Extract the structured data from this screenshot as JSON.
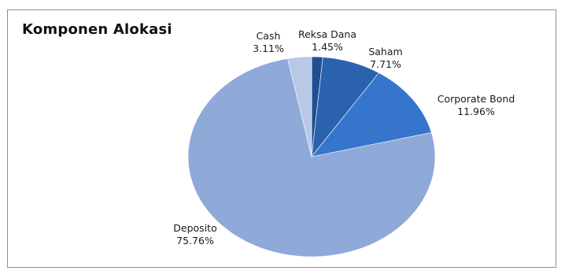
{
  "chart_data": {
    "type": "pie",
    "title": "Komponen Alokasi",
    "slices": [
      {
        "label": "Reksa Dana",
        "value": 1.45,
        "display": "1.45%",
        "color": "#1f4f8f"
      },
      {
        "label": "Saham",
        "value": 7.71,
        "display": "7.71%",
        "color": "#2a62b0"
      },
      {
        "label": "Corporate Bond",
        "value": 11.96,
        "display": "11.96%",
        "color": "#3576cc"
      },
      {
        "label": "Deposito",
        "value": 75.76,
        "display": "75.76%",
        "color": "#8fa9d8"
      },
      {
        "label": "Cash",
        "value": 3.11,
        "display": "3.11%",
        "color": "#b8c8e6"
      }
    ],
    "start_angle_deg": 0,
    "direction": "clockwise",
    "legend": "none"
  }
}
